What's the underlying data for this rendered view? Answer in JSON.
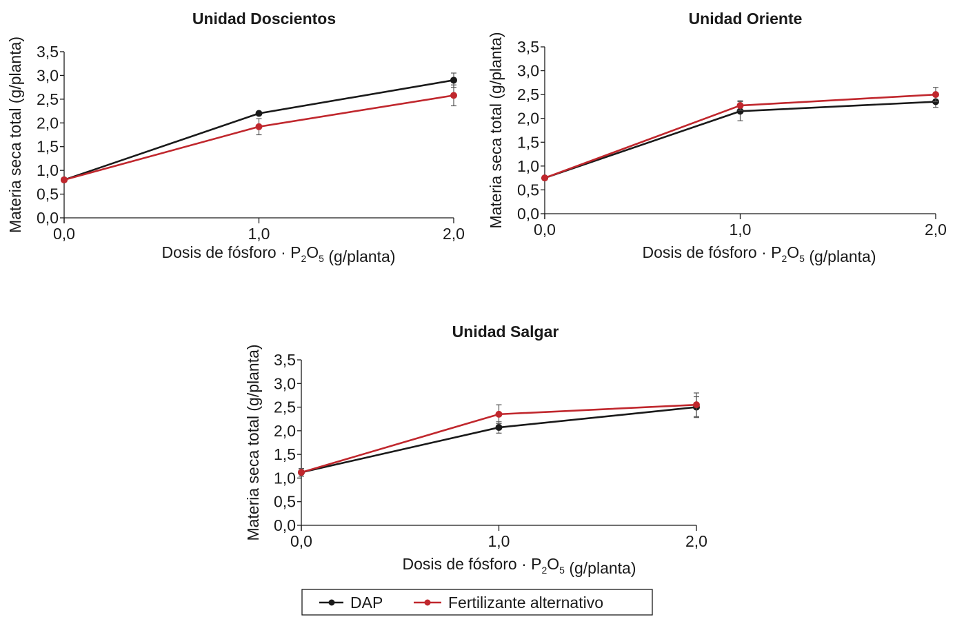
{
  "colors": {
    "dap": "#1a1a1a",
    "alt": "#c0272d",
    "axis": "#1a1a1a"
  },
  "legend": [
    {
      "label": "DAP",
      "color": "#1a1a1a"
    },
    {
      "label": "Fertilizante alternativo",
      "color": "#c0272d"
    }
  ],
  "chart_data": [
    {
      "type": "line",
      "title": "Unidad Doscientos",
      "xlabel": "Dosis de fósforo - P2O5 (g/planta)",
      "ylabel": "Materia seca total (g/planta)",
      "x": [
        0.0,
        1.0,
        2.0
      ],
      "x_tick_labels": [
        "0,0",
        "1,0",
        "2,0"
      ],
      "y_tick_labels": [
        "0,0",
        "0,5",
        "1,0",
        "1,5",
        "2,0",
        "2,5",
        "3,0",
        "3,5"
      ],
      "ylim": [
        0,
        3.5
      ],
      "series": [
        {
          "name": "DAP",
          "values": [
            0.8,
            2.2,
            2.9
          ],
          "err": [
            0.05,
            0.05,
            0.15
          ]
        },
        {
          "name": "Fertilizante alternativo",
          "values": [
            0.8,
            1.92,
            2.58
          ],
          "err": [
            0.05,
            0.17,
            0.22
          ]
        }
      ]
    },
    {
      "type": "line",
      "title": "Unidad Oriente",
      "xlabel": "Dosis de fósforo - P2O5 (g/planta)",
      "ylabel": "Materia seca total (g/planta)",
      "x": [
        0.0,
        1.0,
        2.0
      ],
      "x_tick_labels": [
        "0,0",
        "1,0",
        "2,0"
      ],
      "y_tick_labels": [
        "0,0",
        "0,5",
        "1,0",
        "1,5",
        "2,0",
        "2,5",
        "3,0",
        "3,5"
      ],
      "ylim": [
        0,
        3.5
      ],
      "series": [
        {
          "name": "DAP",
          "values": [
            0.75,
            2.15,
            2.35
          ],
          "err": [
            0.05,
            0.2,
            0.12
          ]
        },
        {
          "name": "Fertilizante alternativo",
          "values": [
            0.75,
            2.27,
            2.5
          ],
          "err": [
            0.05,
            0.1,
            0.15
          ]
        }
      ]
    },
    {
      "type": "line",
      "title": "Unidad Salgar",
      "xlabel": "Dosis de fósforo - P2O5 (g/planta)",
      "ylabel": "Materia seca total (g/planta)",
      "x": [
        0.0,
        1.0,
        2.0
      ],
      "x_tick_labels": [
        "0,0",
        "1,0",
        "2,0"
      ],
      "y_tick_labels": [
        "0,0",
        "0,5",
        "1,0",
        "1,5",
        "2,0",
        "2,5",
        "3,0",
        "3,5"
      ],
      "ylim": [
        0,
        3.5
      ],
      "series": [
        {
          "name": "DAP",
          "values": [
            1.12,
            2.07,
            2.5
          ],
          "err": [
            0.08,
            0.12,
            0.22
          ]
        },
        {
          "name": "Fertilizante alternativo",
          "values": [
            1.12,
            2.35,
            2.55
          ],
          "err": [
            0.08,
            0.2,
            0.25
          ]
        }
      ]
    }
  ]
}
